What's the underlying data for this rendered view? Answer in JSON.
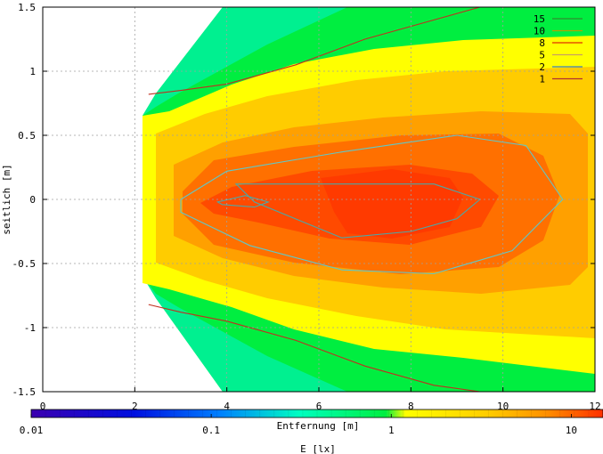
{
  "chart_data": {
    "type": "heatmap",
    "xlabel": "Entfernung [m]",
    "ylabel": "seitlich [m]",
    "xlim": [
      0,
      12
    ],
    "ylim": [
      -1.5,
      1.5
    ],
    "x_ticks": [
      "0",
      "2",
      "4",
      "6",
      "8",
      "10",
      "12"
    ],
    "y_ticks": [
      "1.5",
      "1",
      "0.5",
      "0",
      "-0.5",
      "-1",
      "-1.5"
    ],
    "colorbar": {
      "label": "E [lx]",
      "scale": "log",
      "range": [
        0.01,
        15
      ],
      "ticks": [
        "0.01",
        "0.1",
        "1",
        "10"
      ]
    },
    "contour_levels": [
      {
        "name": "15",
        "color": "#2f8f2f"
      },
      {
        "name": "10",
        "color": "#b8a000"
      },
      {
        "name": "8",
        "color": "#e03000"
      },
      {
        "name": "5",
        "color": "#c8a060"
      },
      {
        "name": "2",
        "color": "#3a7fbf"
      },
      {
        "name": "1",
        "color": "#b03030"
      }
    ],
    "series": [
      {
        "name": "15",
        "level": 15,
        "x": [
          3.8,
          4.4,
          4.9,
          4.6,
          3.9
        ],
        "y": [
          -0.02,
          0.03,
          -0.02,
          -0.06,
          -0.04
        ]
      },
      {
        "name": "10",
        "level": 10,
        "x": [
          4.2,
          6.5,
          8.5,
          9.5,
          9.0,
          8.0,
          6.5,
          4.6
        ],
        "y": [
          0.12,
          0.12,
          0.12,
          0.0,
          -0.15,
          -0.25,
          -0.3,
          -0.02
        ]
      },
      {
        "name": "5",
        "level": 5,
        "x": [
          3.0,
          4.0,
          6.5,
          9.0,
          10.5,
          11.3,
          10.2,
          8.5,
          6.5,
          4.5,
          3.0
        ],
        "y": [
          0.0,
          0.22,
          0.37,
          0.5,
          0.42,
          0.0,
          -0.4,
          -0.58,
          -0.55,
          -0.36,
          -0.1
        ]
      },
      {
        "name": "1 (upper)",
        "level": 1,
        "x": [
          2.3,
          3.0,
          4.0,
          5.5,
          7.0,
          8.5,
          9.5
        ],
        "y": [
          0.82,
          0.85,
          0.9,
          1.05,
          1.25,
          1.4,
          1.5
        ]
      },
      {
        "name": "1 (lower)",
        "level": 1,
        "x": [
          2.3,
          3.0,
          4.0,
          5.5,
          7.0,
          8.5,
          9.5
        ],
        "y": [
          -0.82,
          -0.88,
          -0.95,
          -1.1,
          -1.3,
          -1.45,
          -1.5
        ]
      }
    ]
  },
  "colors": {
    "colormap": [
      "#3b00b0",
      "#0010e0",
      "#0080ff",
      "#00ffc0",
      "#00ee40",
      "#ffff00",
      "#ffcc00",
      "#ff9000",
      "#ff4000",
      "#ff0000"
    ]
  }
}
